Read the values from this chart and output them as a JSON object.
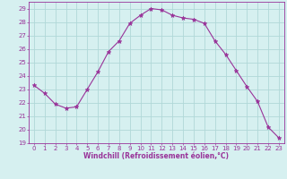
{
  "x": [
    0,
    1,
    2,
    3,
    4,
    5,
    6,
    7,
    8,
    9,
    10,
    11,
    12,
    13,
    14,
    15,
    16,
    17,
    18,
    19,
    20,
    21,
    22,
    23
  ],
  "y": [
    23.3,
    22.7,
    21.9,
    21.6,
    21.7,
    23.0,
    24.3,
    25.8,
    26.6,
    27.9,
    28.5,
    29.0,
    28.9,
    28.5,
    28.3,
    28.2,
    27.9,
    26.6,
    25.6,
    24.4,
    23.2,
    22.1,
    20.2,
    19.4
  ],
  "line_color": "#993399",
  "marker": "*",
  "marker_size": 3.5,
  "bg_color": "#d6f0f0",
  "grid_color": "#b0d8d8",
  "xlabel": "Windchill (Refroidissement éolien,°C)",
  "xlabel_color": "#993399",
  "tick_color": "#993399",
  "axis_color": "#993399",
  "ylim": [
    19,
    29.5
  ],
  "xlim": [
    -0.5,
    23.5
  ],
  "yticks": [
    19,
    20,
    21,
    22,
    23,
    24,
    25,
    26,
    27,
    28,
    29
  ],
  "xticks": [
    0,
    1,
    2,
    3,
    4,
    5,
    6,
    7,
    8,
    9,
    10,
    11,
    12,
    13,
    14,
    15,
    16,
    17,
    18,
    19,
    20,
    21,
    22,
    23
  ],
  "tick_fontsize": 5.0,
  "xlabel_fontsize": 5.5,
  "linewidth": 0.8
}
